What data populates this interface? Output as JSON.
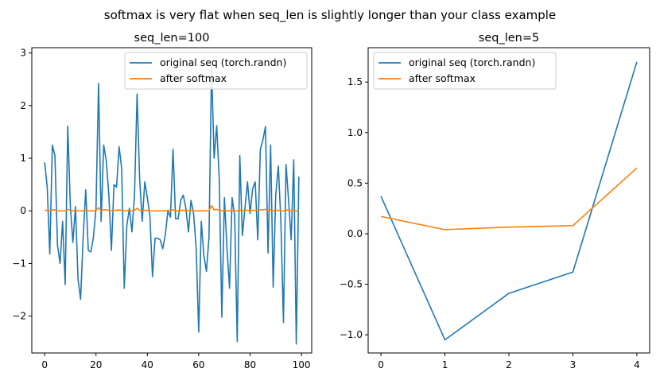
{
  "figure_title": "softmax is very flat when seq_len is slightly longer than your class example",
  "colors": {
    "series1": "#1f77b4",
    "series2": "#ff7f0e"
  },
  "chart_data": [
    {
      "type": "line",
      "title": "seq_len=100",
      "xlabel": "",
      "ylabel": "",
      "xlim": [
        -5,
        104
      ],
      "ylim": [
        -2.7,
        3.1
      ],
      "xticks": [
        "0",
        "20",
        "40",
        "60",
        "80",
        "100"
      ],
      "xtick_values": [
        0,
        20,
        40,
        60,
        80,
        100
      ],
      "yticks": [
        "−2",
        "−1",
        "0",
        "1",
        "2",
        "3"
      ],
      "ytick_values": [
        -2,
        -1,
        0,
        1,
        2,
        3
      ],
      "grid": false,
      "legend": "upper right",
      "series": [
        {
          "name": "original seq (torch.randn)",
          "x": [
            0,
            1,
            2,
            3,
            4,
            5,
            6,
            7,
            8,
            9,
            10,
            11,
            12,
            13,
            14,
            15,
            16,
            17,
            18,
            19,
            20,
            21,
            22,
            23,
            24,
            25,
            26,
            27,
            28,
            29,
            30,
            31,
            32,
            33,
            34,
            35,
            36,
            37,
            38,
            39,
            40,
            41,
            42,
            43,
            44,
            45,
            46,
            47,
            48,
            49,
            50,
            51,
            52,
            53,
            54,
            55,
            56,
            57,
            58,
            59,
            60,
            61,
            62,
            63,
            64,
            65,
            66,
            67,
            68,
            69,
            70,
            71,
            72,
            73,
            74,
            75,
            76,
            77,
            78,
            79,
            80,
            81,
            82,
            83,
            84,
            85,
            86,
            87,
            88,
            89,
            90,
            91,
            92,
            93,
            94,
            95,
            96,
            97,
            98,
            99
          ],
          "values": [
            0.92,
            0.45,
            -0.82,
            1.25,
            1.05,
            -0.65,
            -1.0,
            -0.2,
            -1.4,
            1.61,
            0.1,
            -0.6,
            0.08,
            -1.3,
            -1.68,
            -0.5,
            0.4,
            -0.75,
            -0.78,
            -0.5,
            0.05,
            2.42,
            -0.2,
            1.25,
            0.95,
            0.3,
            -0.75,
            0.5,
            0.45,
            1.22,
            0.8,
            -1.47,
            -0.28,
            0.05,
            -0.4,
            0.3,
            2.22,
            0.6,
            -0.2,
            0.55,
            0.25,
            -0.1,
            -1.25,
            -0.52,
            -0.52,
            -0.55,
            -0.72,
            -0.45,
            0.0,
            -0.12,
            1.17,
            -0.15,
            -0.15,
            0.2,
            0.3,
            0.05,
            -0.4,
            0.2,
            -0.05,
            -0.7,
            -2.3,
            -0.2,
            -0.85,
            -1.15,
            -0.5,
            2.75,
            1.0,
            1.62,
            0.6,
            -2.02,
            0.25,
            -0.7,
            -1.47,
            0.25,
            -0.1,
            -2.48,
            1.05,
            -0.47,
            0.05,
            0.55,
            -0.05,
            0.42,
            0.55,
            -0.55,
            1.17,
            1.35,
            1.6,
            -0.8,
            1.25,
            -1.45,
            0.3,
            0.85,
            -0.2,
            -2.12,
            0.88,
            0.2,
            -0.55,
            0.97,
            -2.53,
            0.65
          ]
        },
        {
          "name": "after softmax",
          "x": [
            0,
            1,
            2,
            3,
            4,
            5,
            6,
            7,
            8,
            9,
            10,
            11,
            12,
            13,
            14,
            15,
            16,
            17,
            18,
            19,
            20,
            21,
            22,
            23,
            24,
            25,
            26,
            27,
            28,
            29,
            30,
            31,
            32,
            33,
            34,
            35,
            36,
            37,
            38,
            39,
            40,
            41,
            42,
            43,
            44,
            45,
            46,
            47,
            48,
            49,
            50,
            51,
            52,
            53,
            54,
            55,
            56,
            57,
            58,
            59,
            60,
            61,
            62,
            63,
            64,
            65,
            66,
            67,
            68,
            69,
            70,
            71,
            72,
            73,
            74,
            75,
            76,
            77,
            78,
            79,
            80,
            81,
            82,
            83,
            84,
            85,
            86,
            87,
            88,
            89,
            90,
            91,
            92,
            93,
            94,
            95,
            96,
            97,
            98,
            99
          ],
          "values": [
            0.01,
            0.01,
            0.0,
            0.02,
            0.02,
            0.0,
            0.0,
            0.0,
            0.0,
            0.03,
            0.01,
            0.0,
            0.01,
            0.0,
            0.0,
            0.0,
            0.01,
            0.0,
            0.0,
            0.0,
            0.01,
            0.06,
            0.0,
            0.02,
            0.02,
            0.01,
            0.0,
            0.01,
            0.01,
            0.02,
            0.01,
            0.0,
            0.0,
            0.01,
            0.0,
            0.01,
            0.05,
            0.01,
            0.0,
            0.01,
            0.01,
            0.0,
            0.0,
            0.0,
            0.0,
            0.0,
            0.0,
            0.0,
            0.01,
            0.0,
            0.02,
            0.0,
            0.0,
            0.01,
            0.01,
            0.01,
            0.0,
            0.01,
            0.0,
            0.0,
            0.0,
            0.0,
            0.0,
            0.0,
            0.0,
            0.1,
            0.02,
            0.03,
            0.01,
            0.0,
            0.01,
            0.0,
            0.0,
            0.01,
            0.0,
            0.0,
            0.02,
            0.0,
            0.01,
            0.01,
            0.0,
            0.01,
            0.01,
            0.0,
            0.02,
            0.02,
            0.03,
            0.0,
            0.02,
            0.0,
            0.01,
            0.01,
            0.0,
            0.0,
            0.02,
            0.01,
            0.0,
            0.02,
            0.0,
            0.01
          ]
        }
      ]
    },
    {
      "type": "line",
      "title": "seq_len=5",
      "xlabel": "",
      "ylabel": "",
      "xlim": [
        -0.2,
        4.2
      ],
      "ylim": [
        -1.18,
        1.84
      ],
      "xticks": [
        "0",
        "1",
        "2",
        "3",
        "4"
      ],
      "xtick_values": [
        0,
        1,
        2,
        3,
        4
      ],
      "yticks": [
        "−1.0",
        "−0.5",
        "0.0",
        "0.5",
        "1.0",
        "1.5"
      ],
      "ytick_values": [
        -1.0,
        -0.5,
        0.0,
        0.5,
        1.0,
        1.5
      ],
      "grid": false,
      "legend": "upper left",
      "series": [
        {
          "name": "original seq (torch.randn)",
          "x": [
            0,
            1,
            2,
            3,
            4
          ],
          "values": [
            0.37,
            -1.05,
            -0.59,
            -0.38,
            1.7
          ]
        },
        {
          "name": "after softmax",
          "x": [
            0,
            1,
            2,
            3,
            4
          ],
          "values": [
            0.17,
            0.04,
            0.065,
            0.08,
            0.65
          ]
        }
      ]
    }
  ]
}
